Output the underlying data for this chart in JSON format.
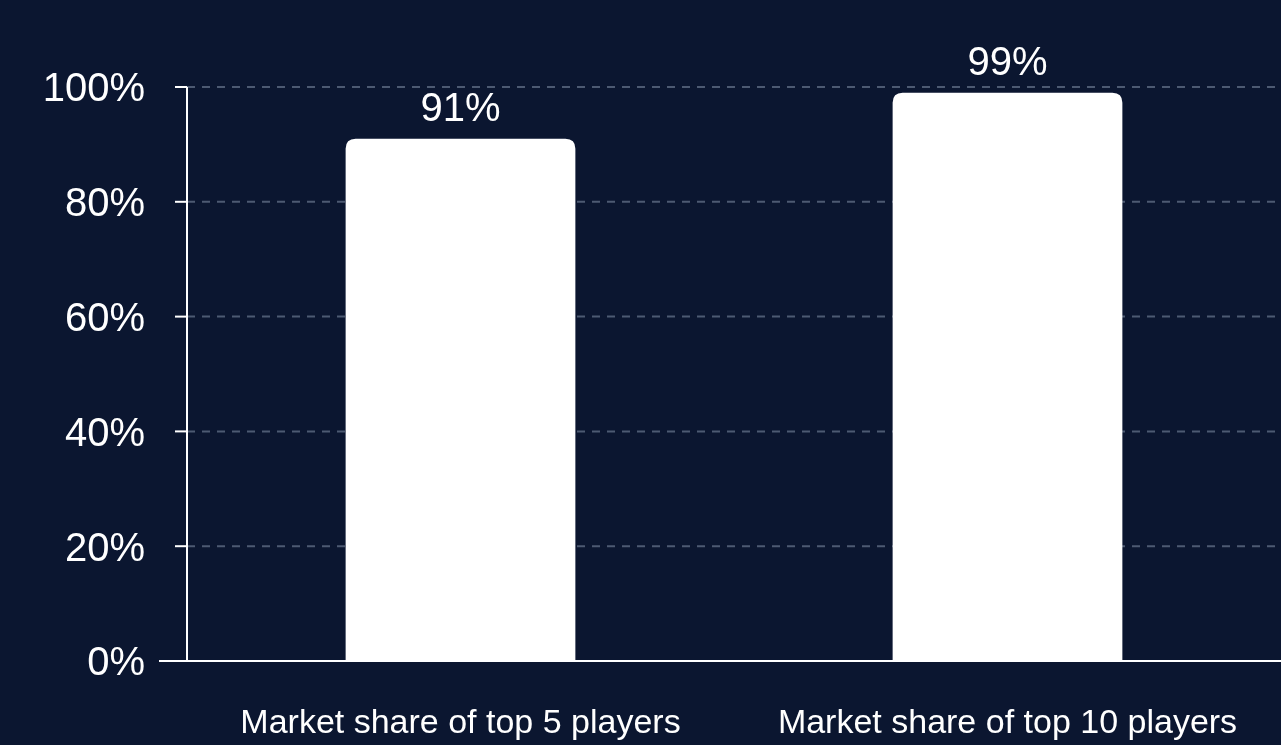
{
  "chart_data": {
    "type": "bar",
    "categories": [
      "Market share of top 5 players",
      "Market share of top 10 players"
    ],
    "values": [
      91,
      99
    ],
    "color": "#ffffff",
    "value_labels": [
      "91%",
      "99%"
    ],
    "ylim": [
      0,
      100
    ],
    "yticks": [
      {
        "value": 0,
        "label": "0%"
      },
      {
        "value": 20,
        "label": "20%"
      },
      {
        "value": 40,
        "label": "40%"
      },
      {
        "value": 60,
        "label": "60%"
      },
      {
        "value": 80,
        "label": "80%"
      },
      {
        "value": 100,
        "label": "100%"
      }
    ],
    "grid": "y"
  }
}
